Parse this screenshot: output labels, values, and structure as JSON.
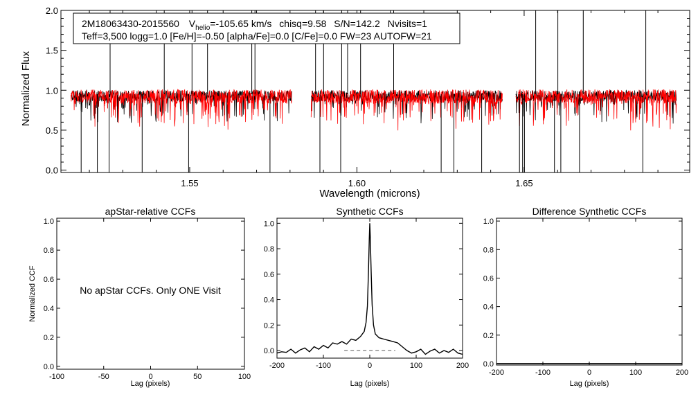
{
  "colors": {
    "observed": "#000000",
    "model": "#ff0000",
    "zero_line": "#555555"
  },
  "chart_data": [
    {
      "type": "line",
      "id": "spectrum",
      "title": "",
      "xlabel": "Wavelength (microns)",
      "ylabel": "Normalized Flux",
      "xlim": [
        1.5115,
        1.6995
      ],
      "ylim": [
        -0.03,
        2.0
      ],
      "xticks": [
        1.55,
        1.6,
        1.65
      ],
      "xtick_labels": [
        "1.55",
        "1.60",
        "1.65"
      ],
      "yticks": [
        0.0,
        0.5,
        1.0,
        1.5,
        2.0
      ],
      "ytick_labels": [
        "0.0",
        "0.5",
        "1.0",
        "1.5",
        "2.0"
      ],
      "chips": [
        [
          1.5145,
          1.5805
        ],
        [
          1.5863,
          1.6435
        ],
        [
          1.6475,
          1.6955
        ]
      ],
      "series": [
        {
          "name": "observed",
          "continuum": 0.93,
          "noise": 0.07
        },
        {
          "name": "model",
          "continuum": 0.92,
          "noise": 0.09
        }
      ],
      "annotation": {
        "star": "2M18063430-2015560",
        "vhelio_label": "V",
        "vhelio_sub": "helio",
        "vhelio_value": "=-105.65 km/s",
        "chisq": "chisq=9.58",
        "snr": "S/N=142.2",
        "nvisits": "Nvisits=1",
        "line2": "Teff=3,500 logg=1.0 [Fe/H]=-0.50 [alpha/Fe]=0.0 [C/Fe]=0.0 FW=23 AUTOFW=21"
      }
    },
    {
      "type": "line",
      "id": "apstar-ccf",
      "title": "apStar-relative CCFs",
      "xlabel": "Lag (pixels)",
      "ylabel": "Normalized CCF",
      "xlim": [
        -100,
        100
      ],
      "ylim": [
        -0.02,
        1.02
      ],
      "xticks": [
        -100,
        -50,
        0,
        50,
        100
      ],
      "xtick_labels": [
        "-100",
        "-50",
        "0",
        "50",
        "100"
      ],
      "yticks": [
        0.0,
        0.2,
        0.4,
        0.6,
        0.8,
        1.0
      ],
      "ytick_labels": [
        "0.0",
        "0.2",
        "0.4",
        "0.6",
        "0.8",
        "1.0"
      ],
      "message": "No apStar CCFs.  Only ONE Visit",
      "series": []
    },
    {
      "type": "line",
      "id": "synthetic-ccf",
      "title": "Synthetic CCFs",
      "xlabel": "Lag (pixels)",
      "xlim": [
        -200,
        200
      ],
      "ylim": [
        -0.06,
        1.04
      ],
      "xticks": [
        -200,
        -100,
        0,
        100,
        200
      ],
      "xtick_labels": [
        "-200",
        "-100",
        "0",
        "100",
        "200"
      ],
      "yticks": [
        0.0,
        0.2,
        0.4,
        0.6,
        0.8,
        1.0
      ],
      "ytick_labels": [
        "0.0",
        "0.2",
        "0.4",
        "0.6",
        "0.8",
        "1.0"
      ],
      "zero_line": [
        -55,
        55
      ],
      "series": [
        {
          "name": "ccf",
          "x": [
            -200,
            -190,
            -180,
            -170,
            -160,
            -150,
            -140,
            -130,
            -120,
            -110,
            -100,
            -90,
            -80,
            -70,
            -60,
            -50,
            -40,
            -30,
            -20,
            -12,
            -8,
            -5,
            -3,
            -1,
            0,
            1,
            3,
            5,
            8,
            12,
            20,
            30,
            40,
            50,
            60,
            70,
            80,
            90,
            100,
            110,
            120,
            130,
            140,
            150,
            160,
            170,
            180,
            190,
            200
          ],
          "y": [
            -0.02,
            -0.01,
            -0.015,
            0.01,
            -0.02,
            0.005,
            0.02,
            -0.01,
            0.03,
            0.01,
            0.04,
            0.02,
            0.06,
            0.05,
            0.07,
            0.05,
            0.09,
            0.08,
            0.11,
            0.15,
            0.22,
            0.35,
            0.6,
            0.88,
            1.0,
            0.9,
            0.62,
            0.36,
            0.2,
            0.13,
            0.1,
            0.09,
            0.08,
            0.07,
            0.06,
            0.03,
            0.0,
            -0.02,
            -0.01,
            0.01,
            -0.03,
            -0.005,
            0.01,
            -0.02,
            0.0,
            -0.015,
            0.01,
            -0.02,
            -0.03
          ]
        }
      ]
    },
    {
      "type": "line",
      "id": "difference-ccf",
      "title": "Difference Synthetic CCFs",
      "xlabel": "Lag (pixels)",
      "xlim": [
        -200,
        200
      ],
      "ylim": [
        -0.01,
        1.02
      ],
      "xticks": [
        -200,
        -100,
        0,
        100,
        200
      ],
      "xtick_labels": [
        "-200",
        "-100",
        "0",
        "100",
        "200"
      ],
      "yticks": [
        0.0,
        0.2,
        0.4,
        0.6,
        0.8,
        1.0
      ],
      "ytick_labels": [
        "0.0",
        "0.2",
        "0.4",
        "0.6",
        "0.8",
        "1.0"
      ],
      "series": [
        {
          "name": "difference",
          "x": [
            -200,
            200
          ],
          "y": [
            0,
            0
          ]
        }
      ]
    }
  ]
}
